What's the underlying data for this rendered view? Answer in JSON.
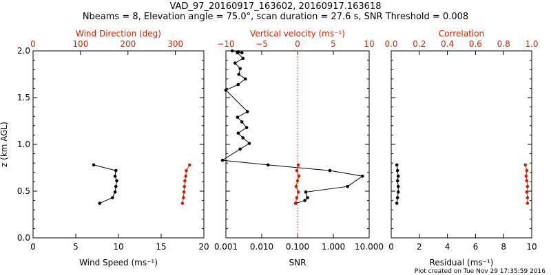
{
  "title_line1": "VAD_97_20160917_163602, 20160917.163618",
  "title_line2": "Nbeams = 8, Elevation angle = 75.0°, scan duration = 27.6 s, SNR Threshold = 0.008",
  "credit": "Plot created on Tue Nov 29 17:35:59 2016",
  "colors": {
    "black": "#000000",
    "red": "#cc2200"
  },
  "y_axis": {
    "label": "z (km AGL)",
    "range": [
      0,
      2.0
    ],
    "ticks": [
      "0.0",
      "0.5",
      "1.0",
      "1.5",
      "2.0"
    ],
    "tick_values": [
      0,
      0.5,
      1.0,
      1.5,
      2.0
    ]
  },
  "chart_data": [
    {
      "type": "line",
      "panel": "left",
      "bottom_axis": {
        "label": "Wind Speed (ms⁻¹)",
        "range": [
          0,
          20
        ],
        "ticks": [
          "0",
          "5",
          "10",
          "15",
          "20"
        ],
        "tick_values": [
          0,
          5,
          10,
          15,
          20
        ]
      },
      "top_axis": {
        "label": "Wind Direction (deg)",
        "range": [
          0,
          360
        ],
        "ticks": [
          "0",
          "100",
          "200",
          "300"
        ],
        "tick_values": [
          0,
          100,
          200,
          300
        ]
      },
      "series": [
        {
          "axis": "bottom",
          "color": "black",
          "x": [
            7.8,
            9.3,
            9.6,
            9.7,
            9.8,
            9.6,
            9.7,
            7.1
          ],
          "y": [
            0.37,
            0.43,
            0.49,
            0.55,
            0.61,
            0.66,
            0.72,
            0.78
          ]
        },
        {
          "axis": "top",
          "color": "red",
          "x": [
            315,
            317,
            318,
            319,
            320,
            322,
            323,
            330
          ],
          "y": [
            0.37,
            0.43,
            0.49,
            0.55,
            0.61,
            0.66,
            0.72,
            0.78
          ]
        }
      ]
    },
    {
      "type": "line",
      "panel": "middle",
      "bottom_axis": {
        "label": "SNR",
        "scale": "log",
        "range": [
          0.001,
          10
        ],
        "ticks": [
          "0.001",
          "0.010",
          "0.100",
          "1.000",
          "10.000"
        ],
        "tick_values": [
          0.001,
          0.01,
          0.1,
          1,
          10
        ]
      },
      "top_axis": {
        "label": "Vertical velocity (ms⁻¹)",
        "range": [
          -10,
          10
        ],
        "ticks": [
          "−10",
          "−5",
          "0",
          "5",
          "10"
        ],
        "tick_values": [
          -10,
          -5,
          0,
          5,
          10
        ]
      },
      "reference_line": {
        "axis": "top",
        "x": 0,
        "style": "dotted",
        "color": "red"
      },
      "series": [
        {
          "axis": "bottom",
          "color": "black",
          "x": [
            0.09,
            0.16,
            0.19,
            0.17,
            2.5,
            6.5,
            0.8,
            0.015,
            0.0008,
            0.0025,
            0.0045,
            0.003,
            0.0022,
            0.0038,
            0.0028,
            0.0021,
            0.004,
            0.001,
            0.0022,
            0.0035,
            0.0023,
            0.0025,
            0.0018,
            0.003,
            0.0021,
            0.0028,
            0.0022,
            0.0015
          ],
          "y": [
            0.37,
            0.4,
            0.43,
            0.49,
            0.55,
            0.66,
            0.72,
            0.78,
            0.83,
            0.95,
            1.01,
            1.07,
            1.12,
            1.18,
            1.24,
            1.29,
            1.35,
            1.58,
            1.64,
            1.7,
            1.75,
            1.81,
            1.87,
            1.92,
            1.98,
            1.98,
            1.99,
            2.0
          ]
        },
        {
          "axis": "top",
          "color": "red",
          "x": [
            -0.3,
            -0.1,
            0.1,
            -0.2,
            0.0,
            0.2,
            -0.1,
            0.1
          ],
          "y": [
            0.37,
            0.43,
            0.49,
            0.55,
            0.61,
            0.66,
            0.72,
            0.78
          ]
        }
      ]
    },
    {
      "type": "scatter",
      "panel": "right",
      "bottom_axis": {
        "label": "Residual (ms⁻¹)",
        "range": [
          0,
          10
        ],
        "ticks": [
          "0",
          "2",
          "4",
          "6",
          "8",
          "10"
        ],
        "tick_values": [
          0,
          2,
          4,
          6,
          8,
          10
        ]
      },
      "top_axis": {
        "label": "Correlation",
        "range": [
          0,
          1.0
        ],
        "ticks": [
          "0.0",
          "0.2",
          "0.4",
          "0.6",
          "0.8",
          "1.0"
        ],
        "tick_values": [
          0,
          0.2,
          0.4,
          0.6,
          0.8,
          1.0
        ]
      },
      "series": [
        {
          "axis": "bottom",
          "color": "black",
          "x": [
            0.4,
            0.45,
            0.5,
            0.5,
            0.45,
            0.5,
            0.45,
            0.4
          ],
          "y": [
            0.37,
            0.43,
            0.49,
            0.55,
            0.61,
            0.66,
            0.72,
            0.78
          ]
        },
        {
          "axis": "top",
          "color": "red",
          "x": [
            0.97,
            0.97,
            0.965,
            0.97,
            0.965,
            0.96,
            0.965,
            0.955
          ],
          "y": [
            0.37,
            0.43,
            0.49,
            0.55,
            0.61,
            0.66,
            0.72,
            0.78
          ]
        }
      ]
    }
  ]
}
